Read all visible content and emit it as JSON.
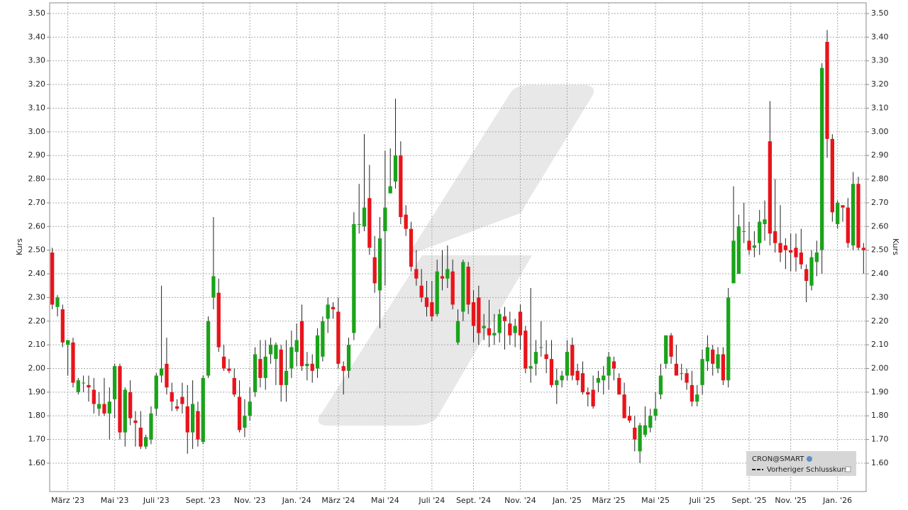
{
  "chart_data": {
    "type": "candlestick",
    "y_label": "Kurs",
    "legend": {
      "title": "CRON@SMART",
      "entry": "Vorheriger Schlusskurs",
      "position": "lower right"
    },
    "series": [
      {
        "name": "CRON@SMART",
        "up_color": "#1aa31a",
        "down_color": "#e8141b",
        "ohlc": [
          [
            2.49,
            2.51,
            2.25,
            2.27
          ],
          [
            2.26,
            2.31,
            2.22,
            2.3
          ],
          [
            2.25,
            2.27,
            2.09,
            2.11
          ],
          [
            2.1,
            2.12,
            1.97,
            2.12
          ],
          [
            2.11,
            2.13,
            1.92,
            1.94
          ],
          [
            1.9,
            1.96,
            1.89,
            1.95
          ],
          [
            1.94,
            1.97,
            1.9,
            1.94
          ],
          [
            1.93,
            1.97,
            1.86,
            1.92
          ],
          [
            1.91,
            1.96,
            1.81,
            1.85
          ],
          [
            1.83,
            1.9,
            1.8,
            1.85
          ],
          [
            1.85,
            1.96,
            1.8,
            1.81
          ],
          [
            1.81,
            1.92,
            1.7,
            1.86
          ],
          [
            1.87,
            2.02,
            1.79,
            2.01
          ],
          [
            2.01,
            2.02,
            1.7,
            1.73
          ],
          [
            1.73,
            1.92,
            1.67,
            1.91
          ],
          [
            1.9,
            1.95,
            1.76,
            1.79
          ],
          [
            1.78,
            1.82,
            1.67,
            1.77
          ],
          [
            1.75,
            1.82,
            1.66,
            1.67
          ],
          [
            1.67,
            1.72,
            1.66,
            1.71
          ],
          [
            1.7,
            1.84,
            1.68,
            1.81
          ],
          [
            1.83,
            1.98,
            1.8,
            1.97
          ],
          [
            1.97,
            2.35,
            1.94,
            2.0
          ],
          [
            2.02,
            2.13,
            1.89,
            1.92
          ],
          [
            1.9,
            1.94,
            1.82,
            1.86
          ],
          [
            1.84,
            1.87,
            1.82,
            1.83
          ],
          [
            1.88,
            1.94,
            1.81,
            1.85
          ],
          [
            1.84,
            1.93,
            1.64,
            1.73
          ],
          [
            1.73,
            1.95,
            1.66,
            1.85
          ],
          [
            1.82,
            1.86,
            1.67,
            1.7
          ],
          [
            1.69,
            1.97,
            1.68,
            1.96
          ],
          [
            1.97,
            2.22,
            1.96,
            2.2
          ],
          [
            2.3,
            2.64,
            2.25,
            2.39
          ],
          [
            2.32,
            2.38,
            2.07,
            2.09
          ],
          [
            2.05,
            2.1,
            1.99,
            2.0
          ],
          [
            2.0,
            2.04,
            1.98,
            1.99
          ],
          [
            1.96,
            2.0,
            1.88,
            1.89
          ],
          [
            1.88,
            1.95,
            1.73,
            1.74
          ],
          [
            1.75,
            1.87,
            1.71,
            1.8
          ],
          [
            1.8,
            1.92,
            1.78,
            1.86
          ],
          [
            1.9,
            2.09,
            1.88,
            2.06
          ],
          [
            2.04,
            2.12,
            1.92,
            1.96
          ],
          [
            1.96,
            2.12,
            1.91,
            2.05
          ],
          [
            2.06,
            2.13,
            2.02,
            2.1
          ],
          [
            2.04,
            2.11,
            1.93,
            2.1
          ],
          [
            2.08,
            2.1,
            1.86,
            1.93
          ],
          [
            1.93,
            2.12,
            1.86,
            1.99
          ],
          [
            2.0,
            2.16,
            1.96,
            2.09
          ],
          [
            2.07,
            2.19,
            2.01,
            2.12
          ],
          [
            2.2,
            2.27,
            1.99,
            2.01
          ],
          [
            2.01,
            2.07,
            1.95,
            2.02
          ],
          [
            2.02,
            2.06,
            1.94,
            1.99
          ],
          [
            2.0,
            2.17,
            1.96,
            2.14
          ],
          [
            2.05,
            2.22,
            2.03,
            2.2
          ],
          [
            2.21,
            2.3,
            2.15,
            2.27
          ],
          [
            2.26,
            2.28,
            2.21,
            2.25
          ],
          [
            2.24,
            2.3,
            2.0,
            2.02
          ],
          [
            2.01,
            2.03,
            1.89,
            1.99
          ],
          [
            1.99,
            2.13,
            1.96,
            2.1
          ],
          [
            2.15,
            2.66,
            2.12,
            2.61
          ],
          [
            2.61,
            2.78,
            2.57,
            2.61
          ],
          [
            2.6,
            2.99,
            2.58,
            2.68
          ],
          [
            2.72,
            2.86,
            2.48,
            2.51
          ],
          [
            2.47,
            2.56,
            2.32,
            2.36
          ],
          [
            2.33,
            2.64,
            2.17,
            2.55
          ],
          [
            2.58,
            2.92,
            2.35,
            2.68
          ],
          [
            2.74,
            2.93,
            2.74,
            2.77
          ],
          [
            2.79,
            3.14,
            2.76,
            2.9
          ],
          [
            2.9,
            2.96,
            2.61,
            2.64
          ],
          [
            2.65,
            2.69,
            2.56,
            2.59
          ],
          [
            2.59,
            2.62,
            2.41,
            2.43
          ],
          [
            2.42,
            2.5,
            2.35,
            2.38
          ],
          [
            2.35,
            2.42,
            2.28,
            2.3
          ],
          [
            2.3,
            2.37,
            2.22,
            2.26
          ],
          [
            2.28,
            2.37,
            2.2,
            2.22
          ],
          [
            2.23,
            2.46,
            2.22,
            2.41
          ],
          [
            2.39,
            2.5,
            2.33,
            2.38
          ],
          [
            2.38,
            2.52,
            2.34,
            2.42
          ],
          [
            2.41,
            2.46,
            2.25,
            2.27
          ],
          [
            2.11,
            2.25,
            2.1,
            2.2
          ],
          [
            2.24,
            2.46,
            2.2,
            2.45
          ],
          [
            2.43,
            2.45,
            2.23,
            2.27
          ],
          [
            2.28,
            2.33,
            2.11,
            2.18
          ],
          [
            2.3,
            2.35,
            2.1,
            2.15
          ],
          [
            2.17,
            2.23,
            2.12,
            2.18
          ],
          [
            2.17,
            2.29,
            2.09,
            2.14
          ],
          [
            2.14,
            2.23,
            2.1,
            2.15
          ],
          [
            2.15,
            2.25,
            2.11,
            2.23
          ],
          [
            2.22,
            2.26,
            2.08,
            2.2
          ],
          [
            2.19,
            2.24,
            2.1,
            2.14
          ],
          [
            2.15,
            2.21,
            2.09,
            2.18
          ],
          [
            2.24,
            2.27,
            2.08,
            2.14
          ],
          [
            2.16,
            2.18,
            1.98,
            2.0
          ],
          [
            2.0,
            2.34,
            1.94,
            2.01
          ],
          [
            2.02,
            2.12,
            1.97,
            2.07
          ],
          [
            2.09,
            2.2,
            2.05,
            2.09
          ],
          [
            2.06,
            2.12,
            1.98,
            2.04
          ],
          [
            2.04,
            2.12,
            1.92,
            1.93
          ],
          [
            1.93,
            2.0,
            1.85,
            1.95
          ],
          [
            1.95,
            1.99,
            1.92,
            1.97
          ],
          [
            1.97,
            2.12,
            1.95,
            2.07
          ],
          [
            2.1,
            2.13,
            1.95,
            1.97
          ],
          [
            1.99,
            2.02,
            1.93,
            1.95
          ],
          [
            1.98,
            2.03,
            1.89,
            1.9
          ],
          [
            1.9,
            1.92,
            1.84,
            1.89
          ],
          [
            1.91,
            1.97,
            1.83,
            1.84
          ],
          [
            1.94,
            1.99,
            1.9,
            1.96
          ],
          [
            1.95,
            2.01,
            1.89,
            1.97
          ],
          [
            1.97,
            2.07,
            1.91,
            2.05
          ],
          [
            2.03,
            2.05,
            1.95,
            2.0
          ],
          [
            1.96,
            1.98,
            1.89,
            1.89
          ],
          [
            1.89,
            1.94,
            1.79,
            1.79
          ],
          [
            1.8,
            1.84,
            1.77,
            1.78
          ],
          [
            1.75,
            1.8,
            1.65,
            1.7
          ],
          [
            1.65,
            1.77,
            1.6,
            1.76
          ],
          [
            1.72,
            1.84,
            1.71,
            1.76
          ],
          [
            1.75,
            1.83,
            1.73,
            1.8
          ],
          [
            1.8,
            1.9,
            1.78,
            1.83
          ],
          [
            1.89,
            2.02,
            1.87,
            1.97
          ],
          [
            2.02,
            2.14,
            2.0,
            2.14
          ],
          [
            2.14,
            2.15,
            2.02,
            2.05
          ],
          [
            2.02,
            2.1,
            1.97,
            1.97
          ],
          [
            1.98,
            2.02,
            1.95,
            1.98
          ],
          [
            1.98,
            2.0,
            1.91,
            1.94
          ],
          [
            1.93,
            1.99,
            1.84,
            1.86
          ],
          [
            1.86,
            1.93,
            1.84,
            1.89
          ],
          [
            1.93,
            2.08,
            1.89,
            2.04
          ],
          [
            2.03,
            2.14,
            1.99,
            2.09
          ],
          [
            2.08,
            2.1,
            1.97,
            2.02
          ],
          [
            2.0,
            2.09,
            1.98,
            2.06
          ],
          [
            2.06,
            2.09,
            1.93,
            1.95
          ],
          [
            1.95,
            2.34,
            1.92,
            2.3
          ],
          [
            2.36,
            2.77,
            2.36,
            2.54
          ],
          [
            2.4,
            2.65,
            2.4,
            2.6
          ],
          [
            2.58,
            2.7,
            2.53,
            2.58
          ],
          [
            2.54,
            2.62,
            2.48,
            2.5
          ],
          [
            2.51,
            2.58,
            2.47,
            2.52
          ],
          [
            2.53,
            2.67,
            2.48,
            2.62
          ],
          [
            2.61,
            2.71,
            2.54,
            2.63
          ],
          [
            2.96,
            3.13,
            2.52,
            2.57
          ],
          [
            2.58,
            2.8,
            2.49,
            2.53
          ],
          [
            2.53,
            2.69,
            2.45,
            2.49
          ],
          [
            2.52,
            2.55,
            2.42,
            2.5
          ],
          [
            2.5,
            2.57,
            2.41,
            2.49
          ],
          [
            2.51,
            2.57,
            2.41,
            2.47
          ],
          [
            2.49,
            2.59,
            2.42,
            2.44
          ],
          [
            2.42,
            2.44,
            2.28,
            2.37
          ],
          [
            2.35,
            2.5,
            2.33,
            2.47
          ],
          [
            2.45,
            2.54,
            2.39,
            2.49
          ],
          [
            2.5,
            3.29,
            2.4,
            3.27
          ],
          [
            3.38,
            3.43,
            2.89,
            2.97
          ],
          [
            2.97,
            2.99,
            2.62,
            2.66
          ],
          [
            2.61,
            2.71,
            2.59,
            2.7
          ],
          [
            2.69,
            2.69,
            2.62,
            2.68
          ],
          [
            2.68,
            2.72,
            2.51,
            2.53
          ],
          [
            2.52,
            2.83,
            2.5,
            2.78
          ],
          [
            2.78,
            2.81,
            2.5,
            2.51
          ],
          [
            2.51,
            2.53,
            2.4,
            2.5
          ]
        ]
      }
    ],
    "categories": [
      null,
      null,
      null,
      "März '23",
      null,
      null,
      null,
      null,
      null,
      null,
      null,
      null,
      "Mai '23",
      null,
      null,
      null,
      null,
      null,
      null,
      null,
      "Juli '23",
      null,
      null,
      null,
      null,
      null,
      null,
      null,
      null,
      "Sept. '23",
      null,
      null,
      null,
      null,
      null,
      null,
      null,
      null,
      "Nov. '23",
      null,
      null,
      null,
      null,
      null,
      null,
      null,
      null,
      "Jan. '24",
      null,
      null,
      null,
      null,
      null,
      null,
      null,
      "März '24",
      null,
      null,
      null,
      null,
      null,
      null,
      null,
      null,
      "Mai '24",
      null,
      null,
      null,
      null,
      null,
      null,
      null,
      null,
      "Juli '24",
      null,
      null,
      null,
      null,
      null,
      null,
      null,
      "Sept. '24",
      null,
      null,
      null,
      null,
      null,
      null,
      null,
      null,
      "Nov. '24",
      null,
      null,
      null,
      null,
      null,
      null,
      null,
      null,
      "Jan. '25",
      null,
      null,
      null,
      null,
      null,
      null,
      null,
      "März '25",
      null,
      null,
      null,
      null,
      null,
      null,
      null,
      null,
      "Mai '25",
      null,
      null,
      null,
      null,
      null,
      null,
      null,
      null,
      "Juli '25",
      null,
      null,
      null,
      null,
      null,
      null,
      null,
      null,
      "Sept. '25",
      null,
      null,
      null,
      null,
      null,
      null,
      null,
      "Nov. '25",
      null,
      null,
      null,
      null,
      null,
      null,
      null,
      null,
      "Jan. '26",
      null,
      null,
      null,
      null,
      null
    ],
    "ylim": [
      1.48,
      3.545
    ],
    "yticks": [
      {
        "value": 1.6,
        "label": "1.60"
      },
      {
        "value": 1.7,
        "label": "1.70"
      },
      {
        "value": 1.8,
        "label": "1.80"
      },
      {
        "value": 1.9,
        "label": "1.90"
      },
      {
        "value": 2.0,
        "label": "2.00"
      },
      {
        "value": 2.1,
        "label": "2.10"
      },
      {
        "value": 2.2,
        "label": "2.20"
      },
      {
        "value": 2.3,
        "label": "2.30"
      },
      {
        "value": 2.4,
        "label": "2.40"
      },
      {
        "value": 2.5,
        "label": "2.50"
      },
      {
        "value": 2.6,
        "label": "2.60"
      },
      {
        "value": 2.7,
        "label": "2.70"
      },
      {
        "value": 2.8,
        "label": "2.80"
      },
      {
        "value": 2.9,
        "label": "2.90"
      },
      {
        "value": 3.0,
        "label": "3.00"
      },
      {
        "value": 3.1,
        "label": "3.10"
      },
      {
        "value": 3.2,
        "label": "3.20"
      },
      {
        "value": 3.3,
        "label": "3.30"
      },
      {
        "value": 3.4,
        "label": "3.40"
      },
      {
        "value": 3.5,
        "label": "3.50"
      }
    ],
    "grid": true,
    "mirror_y_axis": true
  }
}
